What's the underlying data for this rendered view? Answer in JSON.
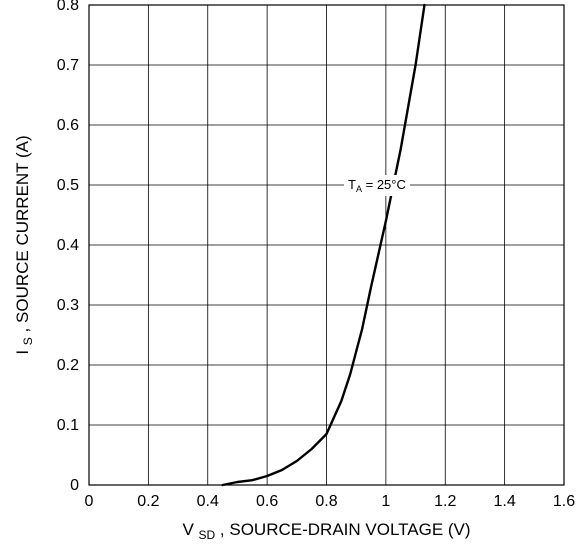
{
  "chart_data": {
    "type": "line",
    "xlabel": {
      "main": "V",
      "sub": "SD",
      "rest": ", SOURCE-DRAIN VOLTAGE (V)"
    },
    "ylabel": {
      "main": "I",
      "sub": "S",
      "rest": ", SOURCE CURRENT (A)"
    },
    "xlim": [
      0,
      1.6
    ],
    "ylim": [
      0,
      0.8
    ],
    "x_ticks": [
      0,
      0.2,
      0.4,
      0.6,
      0.8,
      1,
      1.2,
      1.4,
      1.6
    ],
    "x_tick_labels": [
      "0",
      "0.2",
      "0.4",
      "0.6",
      "0.8",
      "1",
      "1.2",
      "1.4",
      "1.6"
    ],
    "y_ticks": [
      0,
      0.1,
      0.2,
      0.3,
      0.4,
      0.5,
      0.6,
      0.7,
      0.8
    ],
    "y_tick_labels": [
      "0",
      "0.1",
      "0.2",
      "0.3",
      "0.4",
      "0.5",
      "0.6",
      "0.7",
      "0.8"
    ],
    "grid": true,
    "series": [
      {
        "x": [
          0.45,
          0.5,
          0.55,
          0.6,
          0.65,
          0.7,
          0.75,
          0.8,
          0.85,
          0.88,
          0.92,
          0.95,
          1.0,
          1.05,
          1.1,
          1.13
        ],
        "y": [
          0.0,
          0.005,
          0.008,
          0.015,
          0.025,
          0.04,
          0.06,
          0.085,
          0.14,
          0.185,
          0.26,
          0.33,
          0.44,
          0.56,
          0.7,
          0.8
        ],
        "color": "#000000"
      }
    ],
    "annotations": [
      {
        "main": "T",
        "sub": "A",
        "rest": " = 25°C",
        "x": 0.97,
        "y": 0.5
      }
    ]
  }
}
